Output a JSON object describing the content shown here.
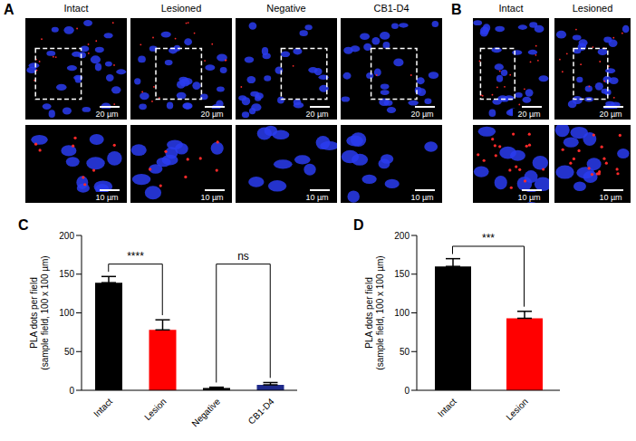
{
  "images": [
    {
      "panel": "A",
      "columns": [
        "Intact",
        "Lesioned",
        "Negative",
        "CB1-D4"
      ],
      "scale_bars": [
        "20 µm",
        "10 µm"
      ]
    },
    {
      "panel": "B",
      "columns": [
        "Intact",
        "Lesioned"
      ],
      "scale_bars": [
        "20 µm",
        "10 µm"
      ]
    }
  ],
  "chart_data": [
    {
      "panel": "C",
      "type": "bar",
      "categories": [
        "Intact",
        "Lesion",
        "Negative",
        "CB1-D4"
      ],
      "values": [
        139,
        78,
        3,
        7
      ],
      "errors": [
        8,
        13,
        1,
        3
      ],
      "colors": [
        "#000000",
        "#ff0000",
        "#000000",
        "#1f2a8a"
      ],
      "y_label": "PLA dots per field (sample field, 100 x 100 µm)",
      "ylim": [
        0,
        200
      ],
      "yticks": [
        0,
        50,
        100,
        150,
        200
      ],
      "annotations": [
        {
          "text": "****",
          "between": [
            "Intact",
            "Lesion"
          ]
        },
        {
          "text": "ns",
          "between": [
            "Negative",
            "CB1-D4"
          ]
        }
      ]
    },
    {
      "panel": "D",
      "type": "bar",
      "categories": [
        "Intact",
        "Lesion"
      ],
      "values": [
        160,
        93
      ],
      "errors": [
        10,
        9
      ],
      "colors": [
        "#000000",
        "#ff0000"
      ],
      "y_label": "PLA dots per field (sample field, 100 x 100 µm)",
      "ylim": [
        0,
        200
      ],
      "yticks": [
        0,
        50,
        100,
        150,
        200
      ],
      "annotations": [
        {
          "text": "***",
          "between": [
            "Intact",
            "Lesion"
          ]
        }
      ]
    }
  ]
}
